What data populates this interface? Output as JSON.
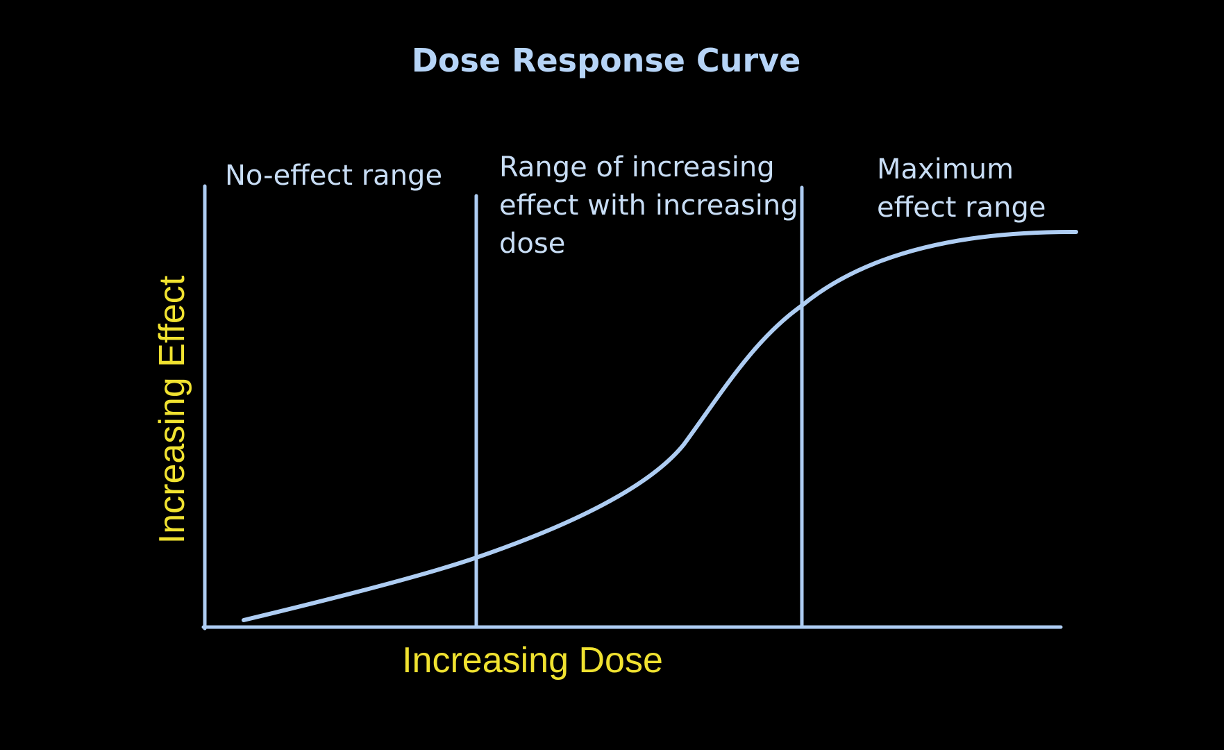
{
  "title": "Dose Response Curve",
  "x_axis_label": "Increasing Dose",
  "y_axis_label": "Increasing Effect",
  "regions": [
    {
      "lines": [
        "No-effect range"
      ]
    },
    {
      "lines": [
        "Range of increasing",
        "effect with increasing",
        "dose"
      ]
    },
    {
      "lines": [
        "Maximum",
        "effect range"
      ]
    }
  ],
  "colors": {
    "background": "#000000",
    "curve": "#aecdf3",
    "axes": "#aecdf3",
    "region_text": "#c8ddf5",
    "title": "#b6d4f7",
    "axis_label": "#f0e230"
  }
}
